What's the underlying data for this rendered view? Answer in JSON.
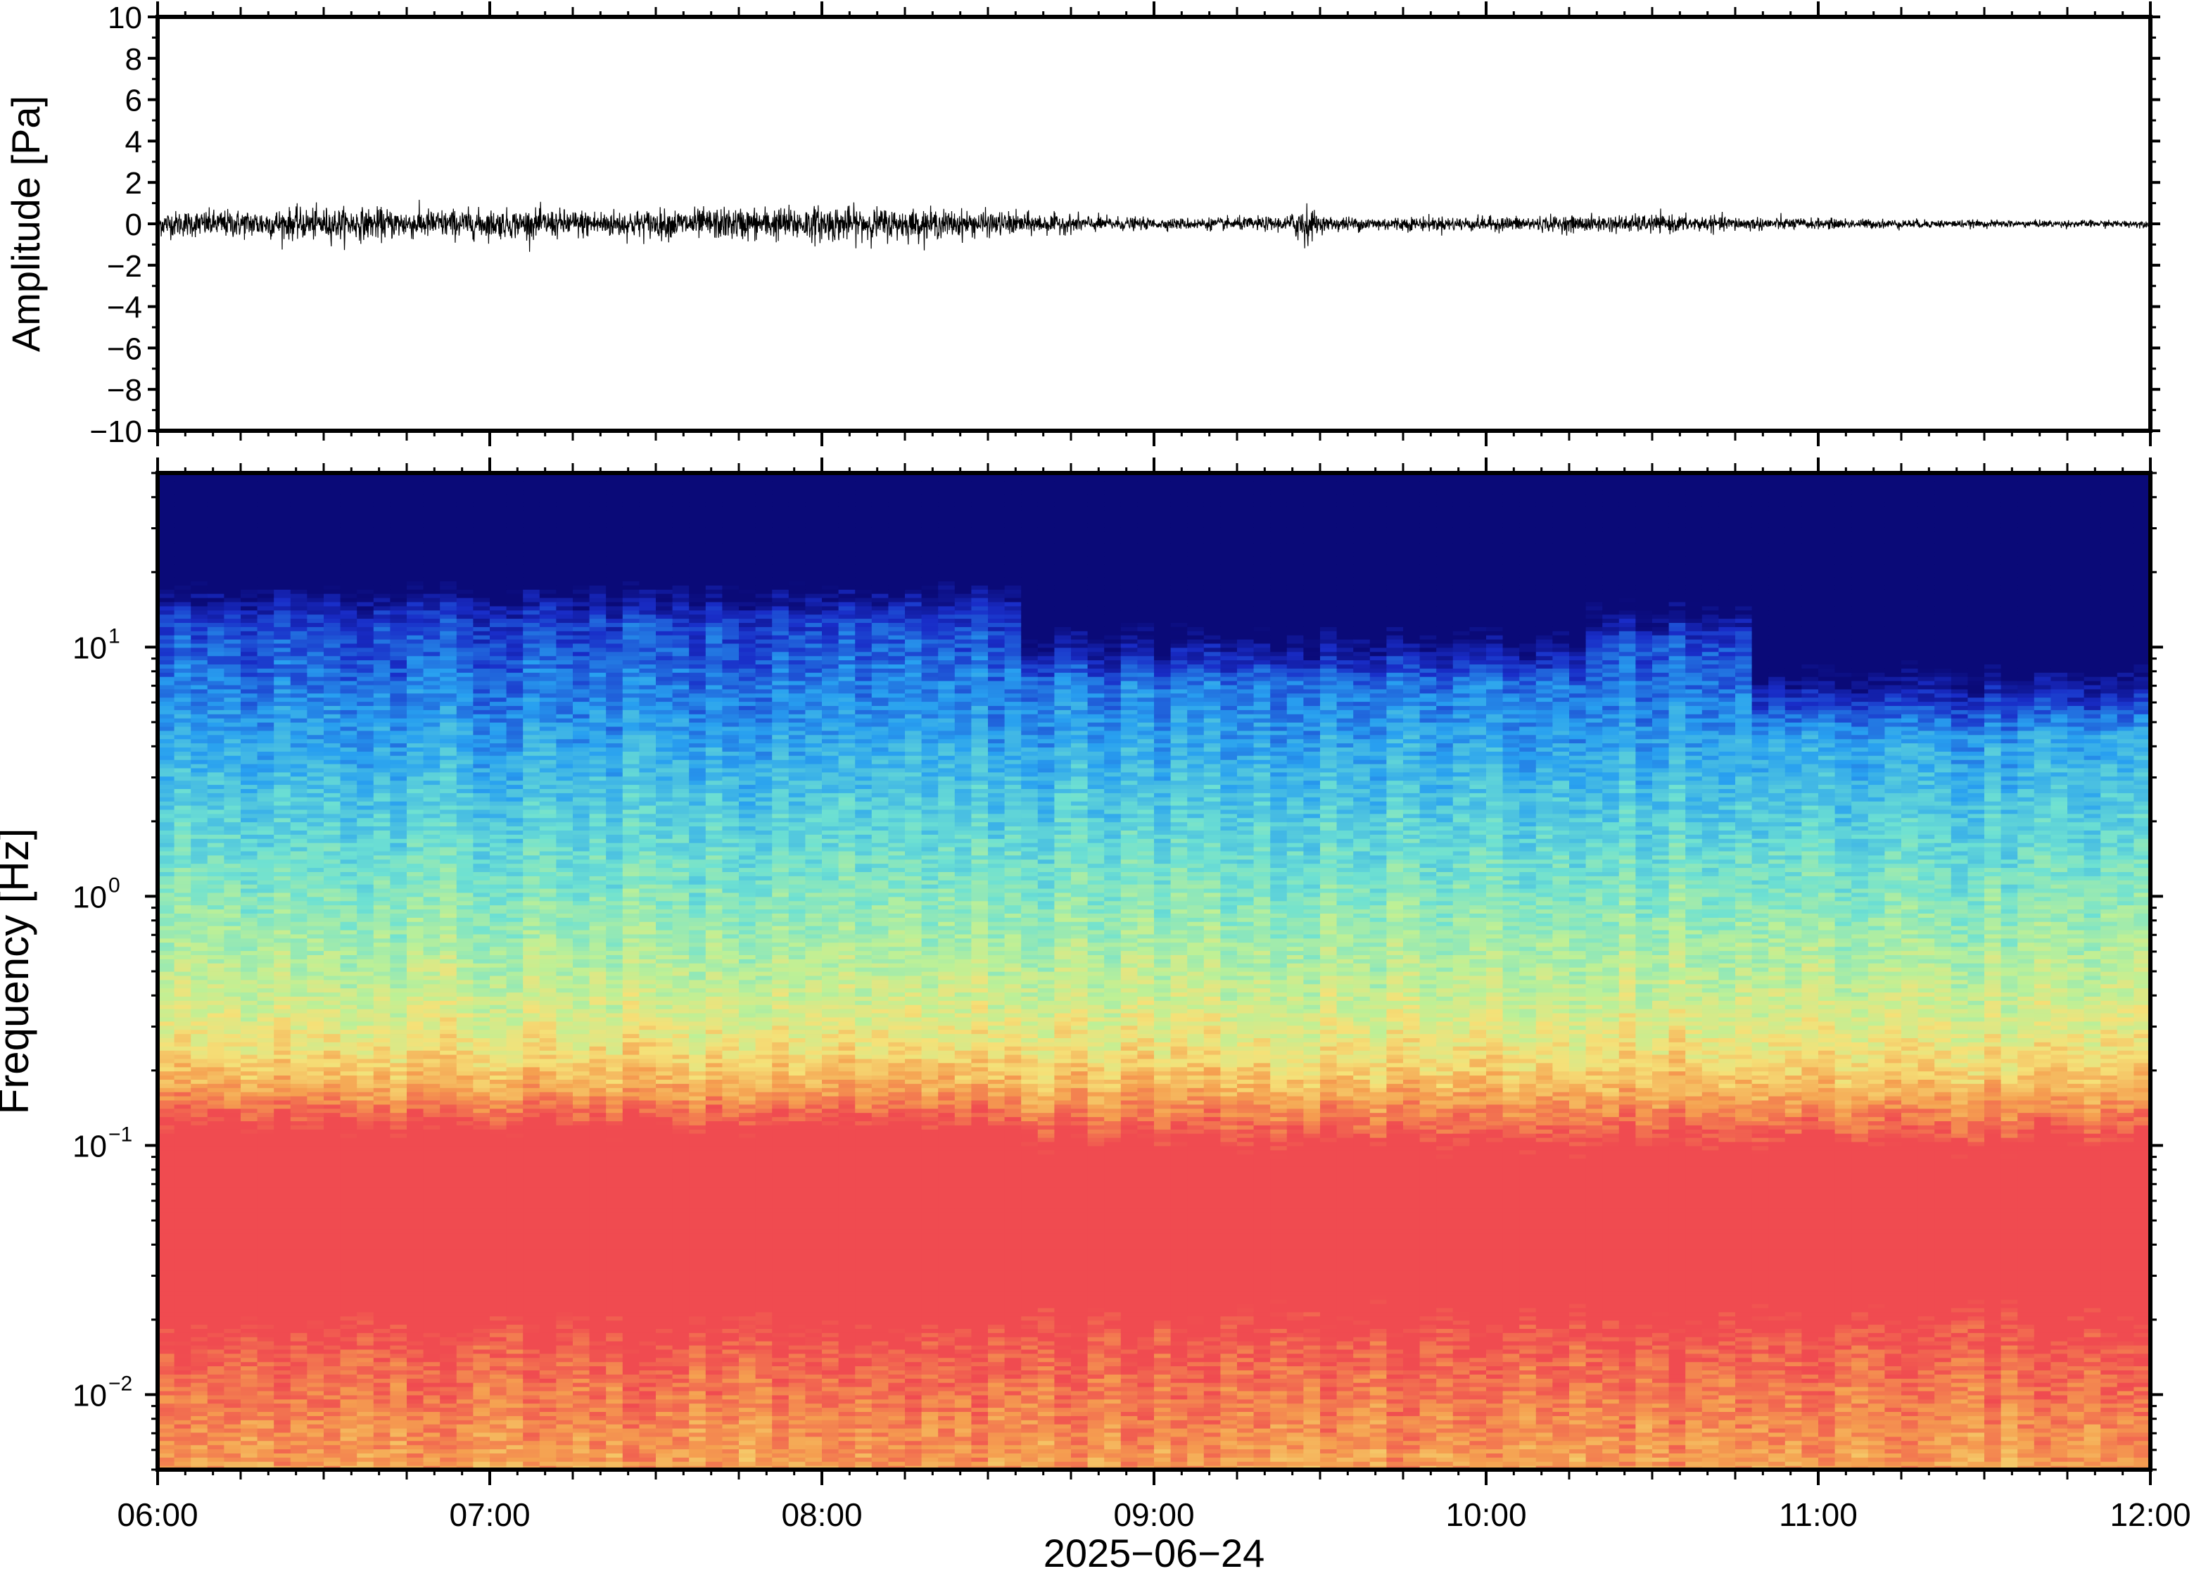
{
  "figure": {
    "date_label": "2025−06−24"
  },
  "chart_data": [
    {
      "type": "line",
      "title": "",
      "xlabel": "",
      "ylabel": "Amplitude [Pa]",
      "ylim": [
        -10,
        10
      ],
      "yticks": [
        -10,
        -8,
        -6,
        -4,
        -2,
        0,
        2,
        4,
        6,
        8,
        10
      ],
      "ytick_labels": [
        "−10",
        "−8",
        "−6",
        "−4",
        "−2",
        "0",
        "2",
        "4",
        "6",
        "8",
        "10"
      ],
      "x_range_hours": [
        6,
        12
      ],
      "grid": false,
      "series": [
        {
          "description_envelope_hours": [
            6.0,
            6.5,
            7.0,
            7.5,
            8.0,
            8.5,
            9.0,
            9.4,
            9.45,
            9.5,
            10.0,
            10.5,
            11.0,
            11.5,
            12.0
          ],
          "peak_amplitude_pa": [
            0.7,
            0.9,
            0.8,
            0.8,
            1.0,
            0.7,
            0.3,
            0.4,
            1.3,
            0.4,
            0.4,
            0.5,
            0.3,
            0.2,
            0.2
          ]
        }
      ]
    },
    {
      "type": "heatmap",
      "title": "",
      "xlabel": "2025−06−24",
      "ylabel": "Frequency [Hz]",
      "y_scale": "log",
      "ylim": [
        0.005,
        50
      ],
      "yticks": [
        0.01,
        0.1,
        1,
        10
      ],
      "ytick_labels": [
        {
          "base": "10",
          "exp": "−2"
        },
        {
          "base": "10",
          "exp": "−1"
        },
        {
          "base": "10",
          "exp": "0"
        },
        {
          "base": "10",
          "exp": "1"
        }
      ],
      "xticks": [
        "06:00",
        "07:00",
        "08:00",
        "09:00",
        "10:00",
        "11:00",
        "12:00"
      ],
      "x_range_hours": [
        6,
        12
      ],
      "colormap": "jet",
      "colors": {
        "low": "#0a0a78",
        "mid_low": "#1e90ff",
        "mid": "#7ee8c8",
        "mid_high": "#f5e87a",
        "high": "#f04a50"
      }
    }
  ]
}
